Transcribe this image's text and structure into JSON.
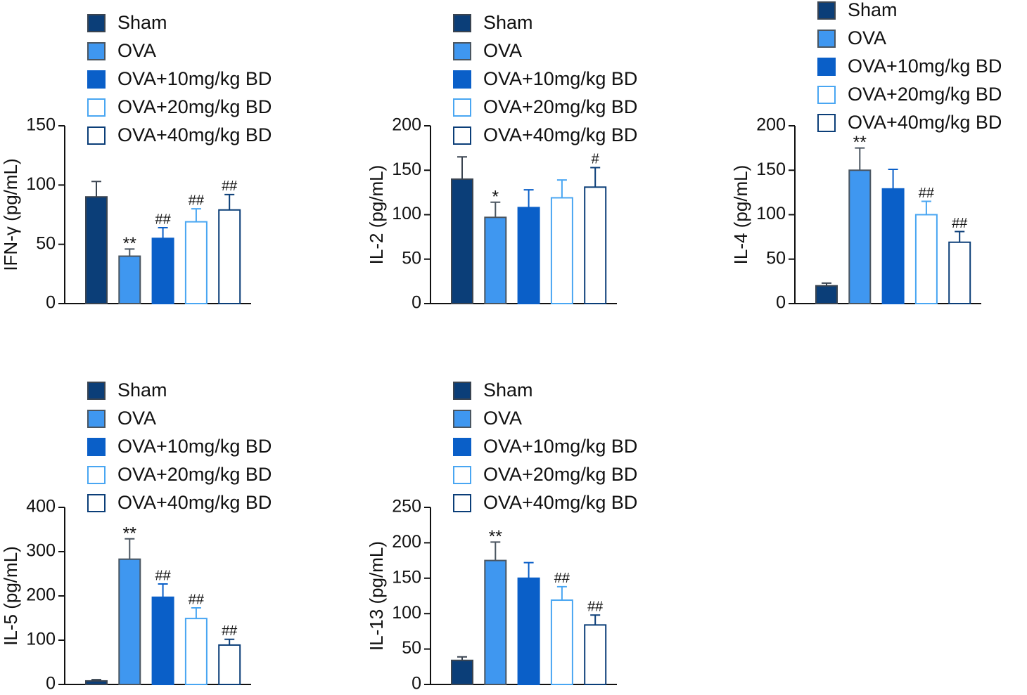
{
  "chart_data": [
    {
      "type": "bar",
      "ylabel": "IFN-γ (pg/mL)",
      "ylim": [
        0,
        150
      ],
      "yticks": [
        0,
        50,
        100,
        150
      ],
      "series": [
        {
          "name": "Sham",
          "color": "#3a4450",
          "fill": "#0b3e78",
          "values": [
            90
          ],
          "errors": [
            13
          ]
        },
        {
          "name": "OVA",
          "color": "#4a5560",
          "fill": "#3f97f0",
          "values": [
            40
          ],
          "errors": [
            6
          ],
          "annotation": "**"
        },
        {
          "name": "OVA+10mg/kg BD",
          "color": "#0a5fc8",
          "fill": "#0a5fc8",
          "values": [
            55
          ],
          "errors": [
            9
          ],
          "annotation": "##"
        },
        {
          "name": "OVA+20mg/kg BD",
          "color": "#49a6f2",
          "fill": "#ffffff",
          "values": [
            69
          ],
          "errors": [
            11
          ],
          "annotation": "##"
        },
        {
          "name": "OVA+40mg/kg BD",
          "color": "#0b3e78",
          "fill": "#ffffff",
          "values": [
            79
          ],
          "errors": [
            13
          ],
          "annotation": "##"
        }
      ]
    },
    {
      "type": "bar",
      "ylabel": "IL-2 (pg/mL)",
      "ylim": [
        0,
        200
      ],
      "yticks": [
        0,
        50,
        100,
        150,
        200
      ],
      "series": [
        {
          "name": "Sham",
          "color": "#3a4450",
          "fill": "#0b3e78",
          "values": [
            140
          ],
          "errors": [
            25
          ]
        },
        {
          "name": "OVA",
          "color": "#4a5560",
          "fill": "#3f97f0",
          "values": [
            97
          ],
          "errors": [
            17
          ],
          "annotation": "*"
        },
        {
          "name": "OVA+10mg/kg BD",
          "color": "#0a5fc8",
          "fill": "#0a5fc8",
          "values": [
            108
          ],
          "errors": [
            20
          ]
        },
        {
          "name": "OVA+20mg/kg BD",
          "color": "#49a6f2",
          "fill": "#ffffff",
          "values": [
            119
          ],
          "errors": [
            20
          ]
        },
        {
          "name": "OVA+40mg/kg BD",
          "color": "#0b3e78",
          "fill": "#ffffff",
          "values": [
            131
          ],
          "errors": [
            22
          ],
          "annotation": "#"
        }
      ]
    },
    {
      "type": "bar",
      "ylabel": "IL-4 (pg/mL)",
      "ylim": [
        0,
        200
      ],
      "yticks": [
        0,
        50,
        100,
        150,
        200
      ],
      "series": [
        {
          "name": "Sham",
          "color": "#3a4450",
          "fill": "#0b3e78",
          "values": [
            20
          ],
          "errors": [
            3
          ]
        },
        {
          "name": "OVA",
          "color": "#4a5560",
          "fill": "#3f97f0",
          "values": [
            150
          ],
          "errors": [
            25
          ],
          "annotation": "**"
        },
        {
          "name": "OVA+10mg/kg BD",
          "color": "#0a5fc8",
          "fill": "#0a5fc8",
          "values": [
            129
          ],
          "errors": [
            22
          ]
        },
        {
          "name": "OVA+20mg/kg BD",
          "color": "#49a6f2",
          "fill": "#ffffff",
          "values": [
            100
          ],
          "errors": [
            15
          ],
          "annotation": "##"
        },
        {
          "name": "OVA+40mg/kg BD",
          "color": "#0b3e78",
          "fill": "#ffffff",
          "values": [
            69
          ],
          "errors": [
            12
          ],
          "annotation": "##"
        }
      ]
    },
    {
      "type": "bar",
      "ylabel": "IL-5 (pg/mL)",
      "ylim": [
        0,
        400
      ],
      "yticks": [
        0,
        100,
        200,
        300,
        400
      ],
      "series": [
        {
          "name": "Sham",
          "color": "#3a4450",
          "fill": "#0b3e78",
          "values": [
            8
          ],
          "errors": [
            3
          ]
        },
        {
          "name": "OVA",
          "color": "#4a5560",
          "fill": "#3f97f0",
          "values": [
            283
          ],
          "errors": [
            46
          ],
          "annotation": "**"
        },
        {
          "name": "OVA+10mg/kg BD",
          "color": "#0a5fc8",
          "fill": "#0a5fc8",
          "values": [
            197
          ],
          "errors": [
            30
          ],
          "annotation": "##"
        },
        {
          "name": "OVA+20mg/kg BD",
          "color": "#49a6f2",
          "fill": "#ffffff",
          "values": [
            149
          ],
          "errors": [
            24
          ],
          "annotation": "##"
        },
        {
          "name": "OVA+40mg/kg BD",
          "color": "#0b3e78",
          "fill": "#ffffff",
          "values": [
            89
          ],
          "errors": [
            13
          ],
          "annotation": "##"
        }
      ]
    },
    {
      "type": "bar",
      "ylabel": "IL-13 (pg/mL)",
      "ylim": [
        0,
        250
      ],
      "yticks": [
        0,
        50,
        100,
        150,
        200,
        250
      ],
      "series": [
        {
          "name": "Sham",
          "color": "#3a4450",
          "fill": "#0b3e78",
          "values": [
            34
          ],
          "errors": [
            5
          ]
        },
        {
          "name": "OVA",
          "color": "#4a5560",
          "fill": "#3f97f0",
          "values": [
            175
          ],
          "errors": [
            26
          ],
          "annotation": "**"
        },
        {
          "name": "OVA+10mg/kg BD",
          "color": "#0a5fc8",
          "fill": "#0a5fc8",
          "values": [
            150
          ],
          "errors": [
            22
          ]
        },
        {
          "name": "OVA+20mg/kg BD",
          "color": "#49a6f2",
          "fill": "#ffffff",
          "values": [
            119
          ],
          "errors": [
            19
          ],
          "annotation": "##"
        },
        {
          "name": "OVA+40mg/kg BD",
          "color": "#0b3e78",
          "fill": "#ffffff",
          "values": [
            84
          ],
          "errors": [
            14
          ],
          "annotation": "##"
        }
      ]
    }
  ]
}
